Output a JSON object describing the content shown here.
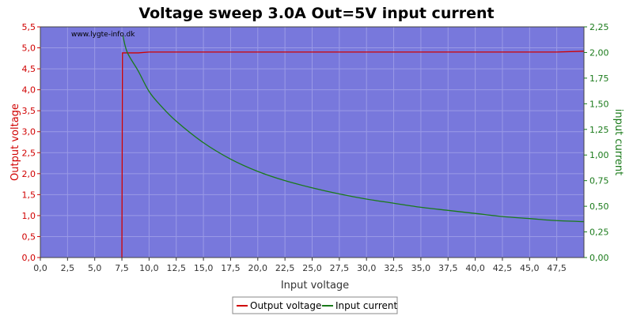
{
  "chart_data": {
    "type": "line",
    "title": "Voltage sweep 3.0A Out=5V input current",
    "watermark": "www.lygte-info.dk",
    "xlabel": "Input voltage",
    "ylabel_left": "Output voltage",
    "ylabel_right": "input current",
    "xlim": [
      0,
      50
    ],
    "ylim_left": [
      0,
      5.5
    ],
    "ylim_right": [
      0,
      2.25
    ],
    "x_ticks": [
      "0,0",
      "2,5",
      "5,0",
      "7,5",
      "10,0",
      "12,5",
      "15,0",
      "17,5",
      "20,0",
      "22,5",
      "25,0",
      "27,5",
      "30,0",
      "32,5",
      "35,0",
      "37,5",
      "40,0",
      "42,5",
      "45,0",
      "47,5"
    ],
    "y_left_ticks": [
      "0,0",
      "0,5",
      "1,0",
      "1,5",
      "2,0",
      "2,5",
      "3,0",
      "3,5",
      "4,0",
      "4,5",
      "5,0",
      "5,5"
    ],
    "y_right_ticks": [
      "0,00",
      "0,25",
      "0,50",
      "0,75",
      "1,00",
      "1,25",
      "1,50",
      "1,75",
      "2,00",
      "2,25"
    ],
    "grid": true,
    "legend_position": "bottom-center",
    "colors": {
      "plot_bg": "#7878dc",
      "grid": "#9a9ae6",
      "output_voltage": "#d00000",
      "input_current": "#1a7a1a",
      "left_axis": "#d00000",
      "right_axis": "#1a7a1a"
    },
    "series": [
      {
        "name": "Output voltage",
        "axis": "left",
        "x": [
          7.5,
          7.55,
          7.8,
          9.0,
          10.0,
          15.0,
          20.0,
          25.0,
          30.0,
          35.0,
          40.0,
          45.0,
          47.5,
          50.0
        ],
        "y": [
          0.0,
          4.88,
          4.88,
          4.88,
          4.9,
          4.9,
          4.9,
          4.9,
          4.9,
          4.9,
          4.9,
          4.9,
          4.9,
          4.92
        ]
      },
      {
        "name": "Input current",
        "axis": "right",
        "x": [
          7.6,
          8.0,
          9.0,
          10.0,
          11.0,
          12.5,
          15.0,
          17.5,
          20.0,
          22.5,
          25.0,
          27.5,
          30.0,
          32.5,
          35.0,
          37.5,
          40.0,
          42.5,
          45.0,
          47.5,
          50.0
        ],
        "y": [
          2.16,
          2.0,
          1.82,
          1.62,
          1.49,
          1.33,
          1.12,
          0.96,
          0.84,
          0.75,
          0.68,
          0.62,
          0.57,
          0.53,
          0.49,
          0.46,
          0.43,
          0.4,
          0.38,
          0.36,
          0.35
        ]
      }
    ]
  }
}
